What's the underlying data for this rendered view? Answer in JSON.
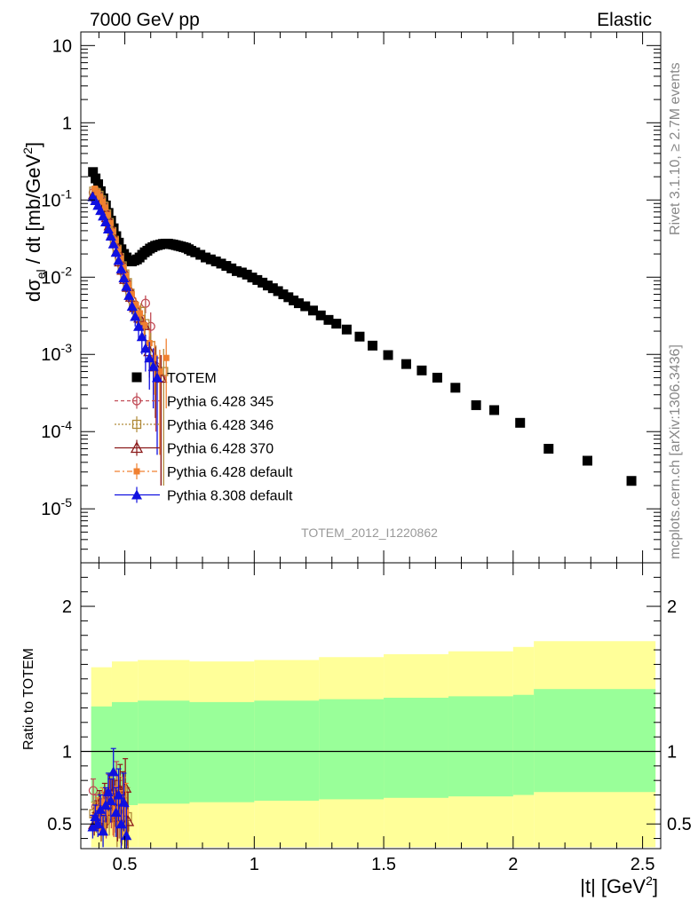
{
  "header": {
    "left": "7000 GeV pp",
    "right": "Elastic"
  },
  "side_labels": {
    "rivet": "Rivet 3.1.10, ≥ 2.7M events",
    "mcplots": "mcplots.cern.ch [arXiv:1306.3436]"
  },
  "analysis_label": "TOTEM_2012_I1220862",
  "colors": {
    "totem": "#000000",
    "p345": "#c04a55",
    "p346": "#b08a3a",
    "p370": "#8b1a1a",
    "p6def": "#f08030",
    "p8def": "#1010e0",
    "band_outer": "#ffff99",
    "band_inner": "#99ff99"
  },
  "chart_data": [
    {
      "type": "scatter",
      "title": "",
      "xlabel": "|t| [GeV^2]",
      "ylabel": "dσ_el / dt [mb/GeV^2]",
      "yscale": "log",
      "xlim": [
        0.33,
        2.57
      ],
      "ylim": [
        2e-06,
        15
      ],
      "x_ticks": [
        "0.5",
        "1",
        "1.5",
        "2",
        "2.5"
      ],
      "y_ticks": [
        "10^-5",
        "10^-4",
        "10^-3",
        "10^-2",
        "10^-1",
        "1",
        "10"
      ],
      "legend_position": "lower-left",
      "series": [
        {
          "name": "TOTEM",
          "marker": "filled-square",
          "x": [
            0.377,
            0.387,
            0.397,
            0.407,
            0.417,
            0.427,
            0.437,
            0.447,
            0.457,
            0.467,
            0.477,
            0.487,
            0.497,
            0.507,
            0.517,
            0.527,
            0.537,
            0.547,
            0.557,
            0.567,
            0.577,
            0.587,
            0.597,
            0.607,
            0.617,
            0.627,
            0.637,
            0.647,
            0.657,
            0.667,
            0.677,
            0.687,
            0.697,
            0.707,
            0.717,
            0.727,
            0.737,
            0.747,
            0.757,
            0.772,
            0.792,
            0.812,
            0.832,
            0.852,
            0.872,
            0.892,
            0.912,
            0.932,
            0.952,
            0.972,
            0.992,
            1.012,
            1.032,
            1.052,
            1.072,
            1.092,
            1.112,
            1.132,
            1.152,
            1.172,
            1.197,
            1.227,
            1.257,
            1.287,
            1.317,
            1.357,
            1.407,
            1.457,
            1.517,
            1.587,
            1.647,
            1.707,
            1.777,
            1.857,
            1.927,
            2.027,
            2.137,
            2.287,
            2.457
          ],
          "y": [
            0.23,
            0.19,
            0.16,
            0.13,
            0.105,
            0.085,
            0.068,
            0.054,
            0.043,
            0.034,
            0.028,
            0.023,
            0.02,
            0.018,
            0.0165,
            0.016,
            0.0165,
            0.017,
            0.018,
            0.0195,
            0.021,
            0.022,
            0.0235,
            0.0245,
            0.0255,
            0.026,
            0.0265,
            0.027,
            0.0272,
            0.0272,
            0.0268,
            0.0265,
            0.026,
            0.0255,
            0.025,
            0.0245,
            0.024,
            0.023,
            0.022,
            0.021,
            0.0195,
            0.018,
            0.017,
            0.016,
            0.015,
            0.014,
            0.013,
            0.012,
            0.0115,
            0.0108,
            0.0099,
            0.0092,
            0.0085,
            0.0078,
            0.0072,
            0.0066,
            0.006,
            0.0055,
            0.005,
            0.0046,
            0.0042,
            0.0037,
            0.0032,
            0.0028,
            0.0025,
            0.0021,
            0.0017,
            0.0013,
            0.00098,
            0.00075,
            0.00062,
            0.0005,
            0.00037,
            0.00022,
            0.00019,
            0.00013,
            6e-05,
            4.2e-05,
            2.3e-05
          ]
        },
        {
          "name": "Pythia 6.428 345",
          "marker": "open-circle",
          "x": [
            0.378,
            0.388,
            0.398,
            0.408,
            0.418,
            0.428,
            0.438,
            0.448,
            0.458,
            0.468,
            0.478,
            0.488,
            0.498,
            0.508,
            0.518,
            0.528,
            0.54,
            0.555,
            0.565,
            0.58,
            0.6,
            0.62,
            0.64
          ],
          "y": [
            0.125,
            0.13,
            0.115,
            0.1,
            0.085,
            0.068,
            0.052,
            0.04,
            0.031,
            0.024,
            0.018,
            0.014,
            0.011,
            0.0085,
            0.0065,
            0.005,
            0.0038,
            0.0028,
            0.0024,
            0.0046,
            0.0023,
            0.0007,
            0.0005
          ],
          "yerr": [
            0.01,
            0.01,
            0.01,
            0.01,
            0.008,
            0.007,
            0.006,
            0.005,
            0.004,
            0.003,
            0.003,
            0.002,
            0.002,
            0.0015,
            0.0012,
            0.001,
            0.0009,
            0.0008,
            0.0008,
            0.0012,
            0.0012,
            0.0006,
            0.00048
          ]
        },
        {
          "name": "Pythia 6.428 346",
          "marker": "open-square",
          "x": [
            0.38,
            0.39,
            0.4,
            0.41,
            0.42,
            0.43,
            0.44,
            0.45,
            0.46,
            0.47,
            0.48,
            0.49,
            0.5,
            0.51,
            0.52,
            0.533,
            0.548,
            0.562,
            0.578,
            0.6,
            0.62,
            0.65
          ],
          "y": [
            0.13,
            0.125,
            0.115,
            0.1,
            0.083,
            0.066,
            0.051,
            0.039,
            0.03,
            0.023,
            0.018,
            0.014,
            0.011,
            0.0085,
            0.0062,
            0.0043,
            0.0032,
            0.0036,
            0.0025,
            0.0013,
            0.0008,
            0.0006
          ],
          "yerr": [
            0.01,
            0.01,
            0.01,
            0.009,
            0.008,
            0.007,
            0.006,
            0.005,
            0.004,
            0.003,
            0.003,
            0.002,
            0.002,
            0.0015,
            0.0012,
            0.001,
            0.0009,
            0.001,
            0.0008,
            0.0006,
            0.0005,
            0.00058
          ]
        },
        {
          "name": "Pythia 6.428 370",
          "marker": "open-triangle",
          "x": [
            0.382,
            0.392,
            0.402,
            0.412,
            0.422,
            0.432,
            0.442,
            0.452,
            0.462,
            0.472,
            0.482,
            0.492,
            0.502,
            0.512,
            0.525,
            0.54,
            0.557,
            0.575,
            0.595,
            0.618,
            0.64
          ],
          "y": [
            0.12,
            0.11,
            0.1,
            0.088,
            0.074,
            0.06,
            0.047,
            0.036,
            0.028,
            0.022,
            0.016,
            0.0125,
            0.0095,
            0.0075,
            0.0056,
            0.0041,
            0.003,
            0.0024,
            0.0011,
            0.0007,
            0.0005
          ],
          "yerr": [
            0.01,
            0.01,
            0.009,
            0.008,
            0.007,
            0.006,
            0.005,
            0.004,
            0.004,
            0.003,
            0.002,
            0.002,
            0.0015,
            0.0012,
            0.001,
            0.0009,
            0.0008,
            0.0008,
            0.0006,
            0.00055,
            0.00048
          ]
        },
        {
          "name": "Pythia 6.428 default",
          "marker": "filled-square-small",
          "x": [
            0.384,
            0.394,
            0.404,
            0.414,
            0.424,
            0.434,
            0.444,
            0.454,
            0.464,
            0.474,
            0.484,
            0.494,
            0.504,
            0.514,
            0.527,
            0.543,
            0.558,
            0.575,
            0.595,
            0.615,
            0.635,
            0.66
          ],
          "y": [
            0.14,
            0.125,
            0.11,
            0.095,
            0.08,
            0.064,
            0.05,
            0.039,
            0.03,
            0.023,
            0.0175,
            0.0135,
            0.0105,
            0.008,
            0.006,
            0.0044,
            0.0034,
            0.0024,
            0.0014,
            0.0009,
            0.0006,
            0.0009
          ],
          "yerr": [
            0.01,
            0.01,
            0.01,
            0.009,
            0.008,
            0.007,
            0.006,
            0.005,
            0.004,
            0.003,
            0.003,
            0.002,
            0.002,
            0.0015,
            0.0012,
            0.001,
            0.0009,
            0.0008,
            0.0007,
            0.0006,
            0.00055,
            0.0007
          ]
        },
        {
          "name": "Pythia 8.308 default",
          "marker": "filled-triangle",
          "x": [
            0.376,
            0.386,
            0.396,
            0.406,
            0.416,
            0.426,
            0.436,
            0.446,
            0.456,
            0.466,
            0.476,
            0.486,
            0.496,
            0.506,
            0.516,
            0.528,
            0.54,
            0.553,
            0.566,
            0.58,
            0.595,
            0.61,
            0.625
          ],
          "y": [
            0.11,
            0.098,
            0.085,
            0.073,
            0.062,
            0.052,
            0.042,
            0.034,
            0.027,
            0.021,
            0.0165,
            0.0128,
            0.0098,
            0.0076,
            0.0058,
            0.0042,
            0.0031,
            0.0023,
            0.0017,
            0.0012,
            0.0009,
            0.0007,
            0.0005
          ],
          "yerr": [
            0.01,
            0.009,
            0.008,
            0.007,
            0.006,
            0.005,
            0.004,
            0.004,
            0.003,
            0.003,
            0.002,
            0.002,
            0.0015,
            0.0012,
            0.001,
            0.0009,
            0.0008,
            0.0007,
            0.0007,
            0.0006,
            0.00055,
            0.0005,
            0.00045
          ]
        }
      ]
    },
    {
      "type": "scatter",
      "title": "",
      "xlabel": "|t| [GeV^2]",
      "ylabel": "Ratio to TOTEM",
      "xlim": [
        0.33,
        2.57
      ],
      "ylim": [
        0.33,
        2.3
      ],
      "y_ticks": [
        "0.5",
        "1",
        "2"
      ],
      "reference_line": 1,
      "bands": {
        "x_edges": [
          0.37,
          0.45,
          0.55,
          0.75,
          1.0,
          1.25,
          1.5,
          1.75,
          2.0,
          2.08,
          2.55
        ],
        "inner_lower": [
          0.65,
          0.63,
          0.64,
          0.65,
          0.66,
          0.67,
          0.68,
          0.69,
          0.7,
          0.72
        ],
        "inner_upper": [
          1.31,
          1.34,
          1.35,
          1.34,
          1.35,
          1.36,
          1.37,
          1.38,
          1.39,
          1.43
        ],
        "outer_lower": [
          0.34,
          0.34,
          0.34,
          0.34,
          0.34,
          0.34,
          0.34,
          0.34,
          0.34,
          0.34
        ],
        "outer_upper": [
          1.58,
          1.62,
          1.63,
          1.62,
          1.63,
          1.65,
          1.67,
          1.69,
          1.72,
          1.76
        ]
      },
      "series": [
        {
          "name": "Pythia 6.428 345",
          "x": [
            0.378,
            0.388,
            0.398,
            0.408,
            0.418,
            0.428,
            0.438,
            0.448,
            0.458,
            0.468,
            0.478,
            0.488
          ],
          "y": [
            0.73,
            0.62,
            0.55,
            0.48,
            0.6,
            0.52,
            0.7,
            0.62,
            0.58,
            0.73,
            0.6,
            0.55
          ],
          "yerr": [
            0.08,
            0.08,
            0.09,
            0.1,
            0.12,
            0.12,
            0.14,
            0.15,
            0.17,
            0.2,
            0.2,
            0.2
          ]
        },
        {
          "name": "Pythia 6.428 346",
          "x": [
            0.38,
            0.39,
            0.4,
            0.41,
            0.42,
            0.43,
            0.44,
            0.45,
            0.46,
            0.47,
            0.48,
            0.49,
            0.5,
            0.51
          ],
          "y": [
            0.57,
            0.52,
            0.62,
            0.48,
            0.53,
            0.6,
            0.55,
            0.7,
            0.64,
            0.51,
            0.6,
            0.56,
            0.48,
            0.55
          ],
          "yerr": [
            0.08,
            0.08,
            0.09,
            0.1,
            0.11,
            0.12,
            0.13,
            0.15,
            0.16,
            0.17,
            0.2,
            0.2,
            0.2,
            0.2
          ]
        },
        {
          "name": "Pythia 6.428 370",
          "x": [
            0.382,
            0.392,
            0.402,
            0.412,
            0.422,
            0.432,
            0.442,
            0.452,
            0.462,
            0.472,
            0.482,
            0.492,
            0.502,
            0.512
          ],
          "y": [
            0.5,
            0.58,
            0.64,
            0.55,
            0.67,
            0.59,
            0.72,
            0.66,
            0.64,
            0.55,
            0.73,
            0.66,
            0.75,
            0.52
          ],
          "yerr": [
            0.08,
            0.08,
            0.09,
            0.1,
            0.11,
            0.12,
            0.13,
            0.15,
            0.16,
            0.17,
            0.18,
            0.2,
            0.2,
            0.2
          ]
        },
        {
          "name": "Pythia 6.428 default",
          "x": [
            0.384,
            0.394,
            0.404,
            0.414,
            0.424,
            0.434,
            0.444,
            0.454,
            0.464,
            0.474,
            0.484,
            0.494,
            0.504
          ],
          "y": [
            0.55,
            0.6,
            0.53,
            0.65,
            0.58,
            0.62,
            0.68,
            0.57,
            0.6,
            0.66,
            0.55,
            0.62,
            0.58
          ],
          "yerr": [
            0.08,
            0.08,
            0.09,
            0.1,
            0.11,
            0.12,
            0.13,
            0.15,
            0.16,
            0.17,
            0.18,
            0.2,
            0.2
          ]
        },
        {
          "name": "Pythia 8.308 default",
          "x": [
            0.376,
            0.386,
            0.396,
            0.406,
            0.416,
            0.426,
            0.436,
            0.446,
            0.456,
            0.466,
            0.476,
            0.486,
            0.496,
            0.506
          ],
          "y": [
            0.48,
            0.55,
            0.5,
            0.6,
            0.45,
            0.63,
            0.72,
            0.66,
            0.86,
            0.58,
            0.7,
            0.5,
            0.65,
            0.42
          ],
          "yerr": [
            0.08,
            0.08,
            0.09,
            0.1,
            0.11,
            0.12,
            0.13,
            0.15,
            0.16,
            0.17,
            0.18,
            0.2,
            0.2,
            0.2
          ]
        }
      ]
    }
  ]
}
